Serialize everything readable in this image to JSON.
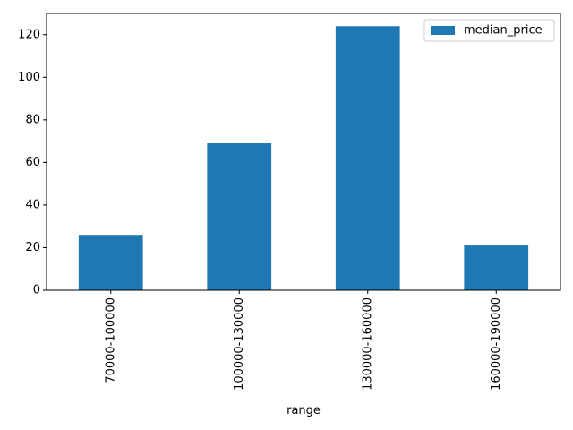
{
  "chart_data": {
    "type": "bar",
    "categories": [
      "70000-100000",
      "100000-130000",
      "130000-160000",
      "160000-190000"
    ],
    "series": [
      {
        "name": "median_price",
        "values": [
          26,
          69,
          124,
          21
        ],
        "color": "#1f77b4"
      }
    ],
    "xlabel": "range",
    "ylabel": "",
    "ylim": [
      0,
      130
    ],
    "yticks": [
      0,
      20,
      40,
      60,
      80,
      100,
      120
    ],
    "ytick_labels": [
      "0",
      "20",
      "40",
      "60",
      "80",
      "100",
      "120"
    ],
    "grid": false,
    "legend_position": "top-right"
  }
}
